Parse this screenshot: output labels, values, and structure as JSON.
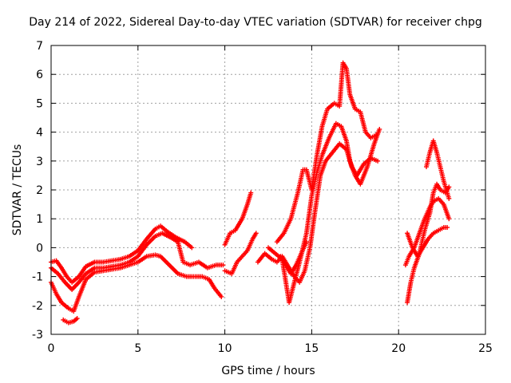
{
  "chart_data": {
    "type": "scatter",
    "title": "Day 214 of 2022, Sidereal Day-to-day VTEC variation (SDTVAR) for receiver chpg",
    "xlabel": "GPS time / hours",
    "ylabel": "SDTVAR / TECUs",
    "xlim": [
      0,
      25
    ],
    "ylim": [
      -3,
      7
    ],
    "xticks": [
      0,
      5,
      10,
      15,
      20,
      25
    ],
    "yticks": [
      -3,
      -2,
      -1,
      0,
      1,
      2,
      3,
      4,
      5,
      6,
      7
    ],
    "grid": true,
    "marker": "+",
    "color": "#ff0000",
    "series": [
      {
        "points": [
          [
            0.0,
            -0.5
          ],
          [
            0.3,
            -0.45
          ],
          [
            0.6,
            -0.7
          ],
          [
            0.9,
            -1.0
          ],
          [
            1.2,
            -1.2
          ],
          [
            1.6,
            -1.0
          ],
          [
            2.0,
            -0.65
          ],
          [
            2.5,
            -0.5
          ],
          [
            3.0,
            -0.5
          ],
          [
            3.5,
            -0.45
          ],
          [
            4.0,
            -0.4
          ],
          [
            4.5,
            -0.3
          ],
          [
            5.0,
            -0.1
          ],
          [
            5.5,
            0.3
          ],
          [
            6.0,
            0.65
          ],
          [
            6.3,
            0.75
          ],
          [
            6.7,
            0.55
          ],
          [
            7.2,
            0.35
          ],
          [
            7.7,
            0.2
          ],
          [
            8.1,
            0.0
          ]
        ]
      },
      {
        "points": [
          [
            0.0,
            -0.7
          ],
          [
            0.4,
            -0.9
          ],
          [
            0.8,
            -1.2
          ],
          [
            1.2,
            -1.45
          ],
          [
            1.6,
            -1.2
          ],
          [
            2.0,
            -0.9
          ],
          [
            2.5,
            -0.7
          ],
          [
            3.0,
            -0.7
          ],
          [
            3.5,
            -0.65
          ],
          [
            4.0,
            -0.6
          ],
          [
            4.5,
            -0.5
          ],
          [
            5.0,
            -0.3
          ],
          [
            5.5,
            0.1
          ],
          [
            6.0,
            0.4
          ],
          [
            6.4,
            0.5
          ],
          [
            6.9,
            0.35
          ],
          [
            7.3,
            0.2
          ],
          [
            7.6,
            -0.5
          ],
          [
            8.0,
            -0.6
          ],
          [
            8.5,
            -0.5
          ],
          [
            9.0,
            -0.7
          ],
          [
            9.5,
            -0.6
          ],
          [
            9.9,
            -0.6
          ]
        ]
      },
      {
        "points": [
          [
            0.0,
            -1.2
          ],
          [
            0.3,
            -1.6
          ],
          [
            0.6,
            -1.9
          ],
          [
            1.0,
            -2.1
          ],
          [
            1.3,
            -2.2
          ],
          [
            1.6,
            -1.7
          ],
          [
            2.0,
            -1.1
          ],
          [
            2.5,
            -0.85
          ],
          [
            3.0,
            -0.8
          ],
          [
            3.5,
            -0.75
          ],
          [
            4.0,
            -0.7
          ],
          [
            4.5,
            -0.6
          ],
          [
            5.0,
            -0.5
          ],
          [
            5.5,
            -0.3
          ],
          [
            6.0,
            -0.25
          ],
          [
            6.3,
            -0.3
          ],
          [
            6.8,
            -0.6
          ],
          [
            7.3,
            -0.9
          ],
          [
            7.8,
            -1.0
          ],
          [
            8.3,
            -1.0
          ],
          [
            8.7,
            -1.0
          ],
          [
            9.1,
            -1.1
          ],
          [
            9.4,
            -1.4
          ],
          [
            9.8,
            -1.7
          ]
        ]
      },
      {
        "points": [
          [
            0.7,
            -2.5
          ],
          [
            1.0,
            -2.6
          ],
          [
            1.3,
            -2.55
          ],
          [
            1.5,
            -2.45
          ]
        ]
      },
      {
        "points": [
          [
            10.0,
            0.1
          ],
          [
            10.3,
            0.5
          ],
          [
            10.6,
            0.6
          ],
          [
            11.0,
            1.0
          ],
          [
            11.3,
            1.5
          ],
          [
            11.5,
            1.9
          ]
        ]
      },
      {
        "points": [
          [
            10.0,
            -0.8
          ],
          [
            10.4,
            -0.9
          ],
          [
            10.7,
            -0.5
          ],
          [
            11.0,
            -0.3
          ],
          [
            11.3,
            -0.1
          ],
          [
            11.6,
            0.3
          ],
          [
            11.8,
            0.5
          ]
        ]
      },
      {
        "points": [
          [
            11.9,
            -0.5
          ],
          [
            12.3,
            -0.2
          ],
          [
            12.7,
            -0.4
          ],
          [
            13.0,
            -0.5
          ],
          [
            13.3,
            -0.3
          ],
          [
            13.6,
            -0.6
          ],
          [
            14.0,
            -1.0
          ],
          [
            14.3,
            -1.2
          ],
          [
            14.6,
            -0.8
          ],
          [
            14.9,
            0.0
          ],
          [
            15.2,
            1.3
          ],
          [
            15.5,
            2.5
          ],
          [
            15.8,
            3.0
          ],
          [
            16.2,
            3.3
          ],
          [
            16.6,
            3.6
          ],
          [
            17.0,
            3.4
          ],
          [
            17.3,
            2.8
          ],
          [
            17.6,
            2.5
          ],
          [
            18.0,
            2.9
          ],
          [
            18.4,
            3.1
          ],
          [
            18.8,
            3.0
          ]
        ]
      },
      {
        "points": [
          [
            12.5,
            0.0
          ],
          [
            12.9,
            -0.2
          ],
          [
            13.3,
            -0.4
          ],
          [
            13.7,
            -1.9
          ],
          [
            14.0,
            -1.2
          ],
          [
            14.3,
            -0.5
          ],
          [
            14.7,
            0.5
          ],
          [
            15.0,
            1.8
          ],
          [
            15.3,
            2.6
          ],
          [
            15.6,
            3.2
          ],
          [
            16.0,
            3.8
          ],
          [
            16.4,
            4.3
          ],
          [
            16.7,
            4.2
          ],
          [
            17.0,
            3.7
          ],
          [
            17.2,
            3.0
          ],
          [
            17.5,
            2.5
          ],
          [
            17.8,
            2.2
          ],
          [
            18.2,
            2.8
          ],
          [
            18.6,
            3.6
          ],
          [
            18.9,
            4.1
          ]
        ]
      },
      {
        "points": [
          [
            13.0,
            0.2
          ],
          [
            13.4,
            0.5
          ],
          [
            13.8,
            1.0
          ],
          [
            14.2,
            1.9
          ],
          [
            14.5,
            2.7
          ],
          [
            14.7,
            2.7
          ],
          [
            15.0,
            2.0
          ],
          [
            15.3,
            3.2
          ],
          [
            15.6,
            4.2
          ],
          [
            15.9,
            4.8
          ],
          [
            16.3,
            5.0
          ],
          [
            16.6,
            4.9
          ],
          [
            16.8,
            6.4
          ],
          [
            17.0,
            6.2
          ],
          [
            17.2,
            5.3
          ],
          [
            17.5,
            4.8
          ],
          [
            17.8,
            4.7
          ],
          [
            18.1,
            4.0
          ],
          [
            18.4,
            3.8
          ],
          [
            18.7,
            3.9
          ]
        ]
      },
      {
        "points": [
          [
            13.2,
            -0.3
          ],
          [
            13.5,
            -0.6
          ],
          [
            13.8,
            -0.9
          ],
          [
            14.1,
            -0.6
          ],
          [
            14.4,
            -0.2
          ],
          [
            14.7,
            0.2
          ]
        ]
      },
      {
        "points": [
          [
            20.4,
            -0.6
          ],
          [
            20.6,
            -0.3
          ],
          [
            20.9,
            0.0
          ],
          [
            21.2,
            0.5
          ],
          [
            21.5,
            1.0
          ],
          [
            21.8,
            1.4
          ],
          [
            22.0,
            1.6
          ],
          [
            22.3,
            1.7
          ],
          [
            22.6,
            1.5
          ],
          [
            22.9,
            1.0
          ]
        ]
      },
      {
        "points": [
          [
            20.5,
            -1.9
          ],
          [
            20.7,
            -1.2
          ],
          [
            20.9,
            -0.7
          ],
          [
            21.2,
            -0.2
          ],
          [
            21.5,
            0.6
          ],
          [
            21.8,
            1.2
          ],
          [
            22.0,
            1.9
          ],
          [
            22.2,
            2.2
          ],
          [
            22.4,
            2.0
          ],
          [
            22.7,
            1.9
          ],
          [
            22.9,
            2.1
          ]
        ]
      },
      {
        "points": [
          [
            20.5,
            0.5
          ],
          [
            20.8,
            0.0
          ],
          [
            21.1,
            -0.3
          ],
          [
            21.4,
            0.0
          ],
          [
            21.7,
            0.3
          ],
          [
            22.0,
            0.5
          ],
          [
            22.3,
            0.6
          ],
          [
            22.6,
            0.7
          ],
          [
            22.8,
            0.7
          ]
        ]
      },
      {
        "points": [
          [
            21.6,
            2.8
          ],
          [
            21.8,
            3.3
          ],
          [
            22.0,
            3.7
          ],
          [
            22.2,
            3.3
          ],
          [
            22.4,
            2.8
          ],
          [
            22.6,
            2.3
          ],
          [
            22.9,
            1.7
          ]
        ]
      }
    ]
  }
}
